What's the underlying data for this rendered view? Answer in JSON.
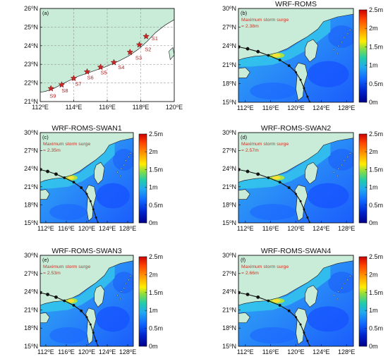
{
  "panels": [
    {
      "label": "(a)",
      "title": "",
      "type": "stations",
      "lat_ticks": [
        "21°N",
        "22°N",
        "23°N",
        "24°N",
        "25°N",
        "26°N"
      ],
      "lon_ticks": [
        "112°E",
        "114°E",
        "116°E",
        "118°E",
        "120°E"
      ],
      "stations": [
        "S1",
        "S2",
        "S3",
        "S4",
        "S5",
        "S6",
        "S7",
        "S8",
        "S9"
      ]
    },
    {
      "label": "(b)",
      "title": "WRF-ROMS",
      "type": "surge",
      "note_line1": "Maximum storm surge",
      "note_line2": "= 2.38m",
      "lat_ticks": [
        "15°N",
        "18°N",
        "21°N",
        "24°N",
        "27°N",
        "30°N"
      ],
      "lon_ticks": [
        "112°E",
        "116°E",
        "120°E",
        "124°E",
        "128°E"
      ]
    },
    {
      "label": "(c)",
      "title": "WRF-ROMS-SWAN1",
      "type": "surge",
      "note_line1": "Maximum storm surge",
      "note_line2": "= 2.35m",
      "lat_ticks": [
        "15°N",
        "18°N",
        "21°N",
        "24°N",
        "27°N",
        "30°N"
      ],
      "lon_ticks": [
        "112°E",
        "116°E",
        "120°E",
        "124°E",
        "128°E"
      ]
    },
    {
      "label": "(d)",
      "title": "WRF-ROMS-SWAN2",
      "type": "surge",
      "note_line1": "Maximum storm surge",
      "note_line2": "= 2.57m",
      "lat_ticks": [
        "15°N",
        "18°N",
        "21°N",
        "24°N",
        "27°N",
        "30°N"
      ],
      "lon_ticks": [
        "112°E",
        "116°E",
        "120°E",
        "124°E",
        "128°E"
      ]
    },
    {
      "label": "(e)",
      "title": "WRF-ROMS-SWAN3",
      "type": "surge",
      "note_line1": "Maximum storm surge",
      "note_line2": "= 2.53m",
      "lat_ticks": [
        "15°N",
        "18°N",
        "21°N",
        "24°N",
        "27°N",
        "30°N"
      ],
      "lon_ticks": [
        "112°E",
        "116°E",
        "120°E",
        "124°E",
        "128°E"
      ]
    },
    {
      "label": "(f)",
      "title": "WRF-ROMS-SWAN4",
      "type": "surge",
      "note_line1": "Maximum storm surge",
      "note_line2": "= 2.66m",
      "lat_ticks": [
        "15°N",
        "18°N",
        "21°N",
        "24°N",
        "27°N",
        "30°N"
      ],
      "lon_ticks": [
        "112°E",
        "116°E",
        "120°E",
        "124°E",
        "128°E"
      ]
    }
  ],
  "colorbar": {
    "labels": [
      "2.5m",
      "2m",
      "1.5m",
      "1m",
      "0.5m",
      "0m"
    ],
    "colors": [
      "#cc0000",
      "#ff4400",
      "#ff9900",
      "#ffee00",
      "#88dd44",
      "#22ccaa",
      "#22aaee",
      "#1166ff",
      "#0022cc",
      "#000088"
    ]
  },
  "colors": {
    "land": "#c8ecd8",
    "sea_low": "#1e63ff",
    "sea_mid": "#25c3f2",
    "track": "#111111",
    "station": "#c62828"
  }
}
